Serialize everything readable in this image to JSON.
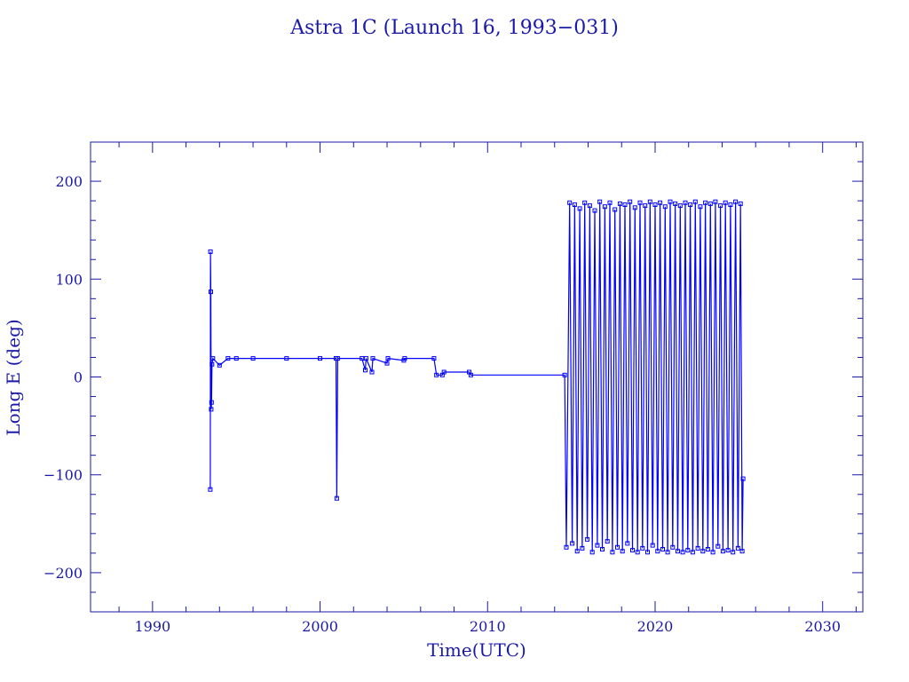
{
  "chart_data": {
    "type": "line",
    "title": "Astra 1C (Launch 16, 1993−031)",
    "xlabel": "Time(UTC)",
    "ylabel": "Long E (deg)",
    "xlim": [
      1986.3,
      2032.4
    ],
    "ylim": [
      -240,
      240
    ],
    "x_ticks": [
      1990,
      2000,
      2010,
      2020,
      2030
    ],
    "x_tick_labels": [
      "1990",
      "2000",
      "2010",
      "2020",
      "2030"
    ],
    "y_ticks": [
      -200,
      -100,
      0,
      100,
      200
    ],
    "y_tick_labels": [
      "−200",
      "−100",
      "0",
      "100",
      "200"
    ],
    "grid": false,
    "line_color": "#0000ff",
    "axis_color": "#1a1aa6",
    "marker": "square",
    "series": [
      {
        "points": [
          [
            1993.45,
            -115
          ],
          [
            1993.46,
            128
          ],
          [
            1993.48,
            87
          ],
          [
            1993.5,
            -33
          ],
          [
            1993.52,
            -26
          ],
          [
            1993.55,
            13
          ],
          [
            1993.6,
            19
          ],
          [
            1994.0,
            12
          ],
          [
            1994.5,
            19
          ],
          [
            1995.0,
            19
          ],
          [
            1996.0,
            19
          ],
          [
            1998.0,
            19
          ],
          [
            2000.0,
            19
          ],
          [
            2000.95,
            19
          ],
          [
            2001.0,
            -124
          ],
          [
            2001.05,
            19
          ],
          [
            2002.5,
            19
          ],
          [
            2002.7,
            7
          ],
          [
            2002.75,
            19
          ],
          [
            2003.1,
            5
          ],
          [
            2003.15,
            19
          ],
          [
            2004.0,
            14
          ],
          [
            2004.05,
            19
          ],
          [
            2005.0,
            17
          ],
          [
            2005.05,
            19
          ],
          [
            2006.8,
            19
          ],
          [
            2006.95,
            2
          ],
          [
            2007.3,
            2
          ],
          [
            2007.4,
            5
          ],
          [
            2008.9,
            5
          ],
          [
            2009.0,
            2
          ],
          [
            2014.6,
            2
          ],
          [
            2014.7,
            -174
          ],
          [
            2014.9,
            178
          ],
          [
            2015.05,
            -170
          ],
          [
            2015.2,
            176
          ],
          [
            2015.35,
            -178
          ],
          [
            2015.5,
            172
          ],
          [
            2015.65,
            -175
          ],
          [
            2015.8,
            178
          ],
          [
            2015.95,
            -166
          ],
          [
            2016.1,
            175
          ],
          [
            2016.25,
            -179
          ],
          [
            2016.4,
            170
          ],
          [
            2016.55,
            -172
          ],
          [
            2016.7,
            179
          ],
          [
            2016.85,
            -176
          ],
          [
            2017.0,
            174
          ],
          [
            2017.15,
            -168
          ],
          [
            2017.3,
            178
          ],
          [
            2017.45,
            -179
          ],
          [
            2017.6,
            171
          ],
          [
            2017.75,
            -174
          ],
          [
            2017.9,
            177
          ],
          [
            2018.05,
            -178
          ],
          [
            2018.2,
            176
          ],
          [
            2018.35,
            -170
          ],
          [
            2018.5,
            179
          ],
          [
            2018.65,
            -177
          ],
          [
            2018.8,
            173
          ],
          [
            2018.95,
            -179
          ],
          [
            2019.1,
            178
          ],
          [
            2019.25,
            -175
          ],
          [
            2019.4,
            175
          ],
          [
            2019.55,
            -179
          ],
          [
            2019.7,
            179
          ],
          [
            2019.85,
            -172
          ],
          [
            2020.0,
            176
          ],
          [
            2020.15,
            -178
          ],
          [
            2020.3,
            178
          ],
          [
            2020.45,
            -176
          ],
          [
            2020.6,
            174
          ],
          [
            2020.75,
            -179
          ],
          [
            2020.9,
            179
          ],
          [
            2021.05,
            -174
          ],
          [
            2021.2,
            177
          ],
          [
            2021.35,
            -178
          ],
          [
            2021.5,
            175
          ],
          [
            2021.65,
            -179
          ],
          [
            2021.8,
            178
          ],
          [
            2021.95,
            -177
          ],
          [
            2022.1,
            176
          ],
          [
            2022.25,
            -179
          ],
          [
            2022.4,
            179
          ],
          [
            2022.55,
            -175
          ],
          [
            2022.7,
            174
          ],
          [
            2022.85,
            -178
          ],
          [
            2023.0,
            178
          ],
          [
            2023.15,
            -176
          ],
          [
            2023.3,
            177
          ],
          [
            2023.45,
            -179
          ],
          [
            2023.6,
            179
          ],
          [
            2023.75,
            -173
          ],
          [
            2023.9,
            175
          ],
          [
            2024.05,
            -178
          ],
          [
            2024.2,
            178
          ],
          [
            2024.35,
            -177
          ],
          [
            2024.5,
            176
          ],
          [
            2024.65,
            -179
          ],
          [
            2024.8,
            179
          ],
          [
            2024.95,
            -175
          ],
          [
            2025.1,
            177
          ],
          [
            2025.2,
            -178
          ],
          [
            2025.25,
            -104
          ]
        ]
      }
    ]
  }
}
